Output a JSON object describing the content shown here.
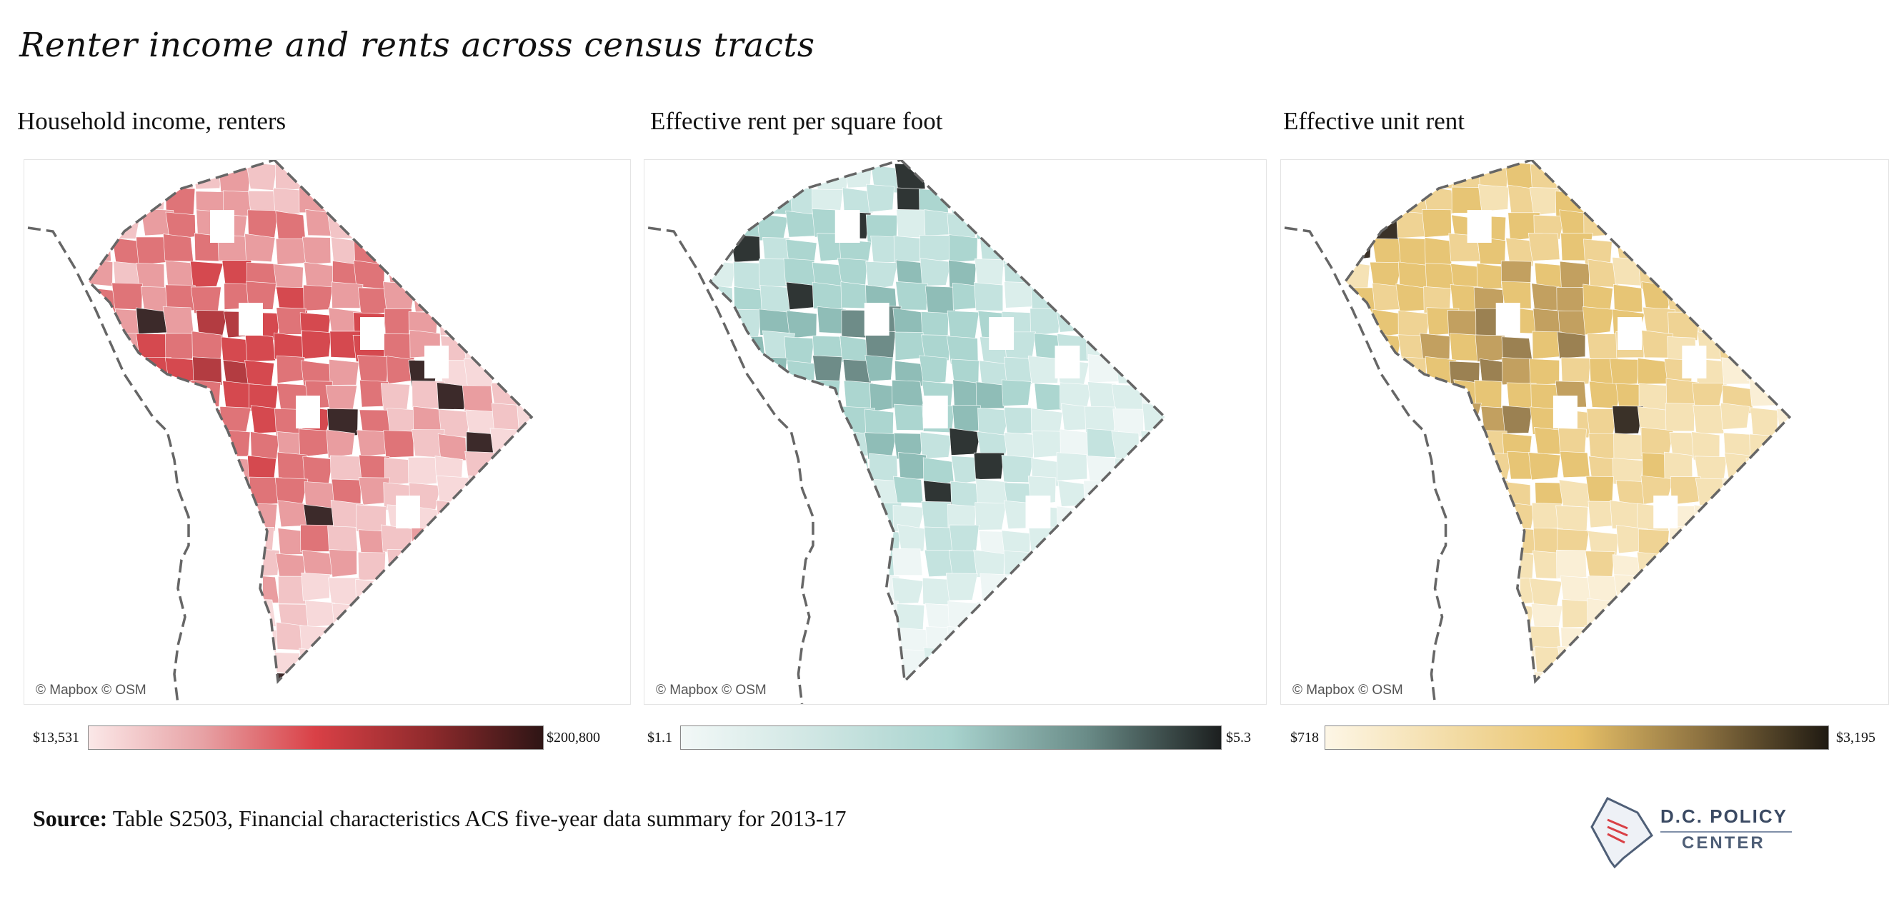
{
  "title": "Renter income and rents across census tracts",
  "panels": [
    {
      "title": "Household income, renters",
      "credit": "© Mapbox © OSM",
      "legend": {
        "min": "$13,531",
        "max": "$200,800",
        "colors": [
          "#fbe8e8",
          "#e7a2a5",
          "#d94046",
          "#8f2a2c",
          "#2e1515"
        ]
      },
      "fills": [
        "#f7d9da",
        "#f2c4c6",
        "#e99da0",
        "#df7478",
        "#d5494f",
        "#b33c41",
        "#3c2a2a"
      ]
    },
    {
      "title": "Effective rent per square foot",
      "credit": "© Mapbox © OSM",
      "legend": {
        "min": "$1.1",
        "max": "$5.3",
        "colors": [
          "#f2f8f7",
          "#cfe6e3",
          "#a8d3ce",
          "#6a8c88",
          "#1c1f1f"
        ]
      },
      "fills": [
        "#eef6f5",
        "#dbeeeb",
        "#c4e3df",
        "#acd6d0",
        "#8fbdb7",
        "#6e8c88",
        "#2f3534"
      ]
    },
    {
      "title": "Effective unit rent",
      "credit": "© Mapbox © OSM",
      "legend": {
        "min": "$718",
        "max": "$3,195",
        "colors": [
          "#fdf6e6",
          "#f3dca6",
          "#e8c168",
          "#8c7140",
          "#1f1a12"
        ]
      },
      "fills": [
        "#faefd6",
        "#f5e2b5",
        "#efd394",
        "#e7c575",
        "#c2a060",
        "#9b8152",
        "#3a3128"
      ]
    }
  ],
  "source": {
    "label": "Source:",
    "text": " Table S2503, Financial characteristics ACS five-year data summary for 2013-17"
  },
  "logo": {
    "line1": "D.C. POLICY",
    "line2": "CENTER"
  }
}
